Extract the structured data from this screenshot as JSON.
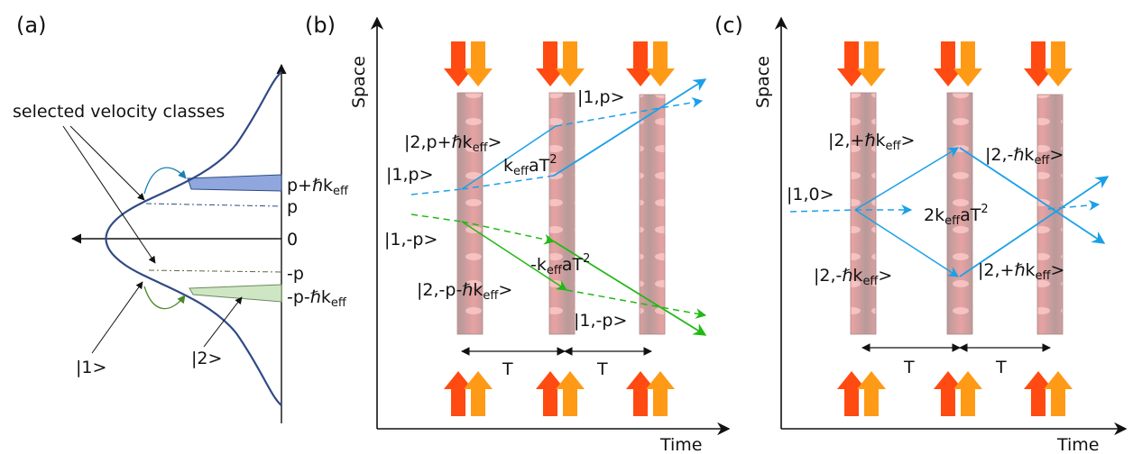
{
  "panels": {
    "a": {
      "label": "(a)",
      "annotation": "selected velocity classes",
      "levels": {
        "p_plus": "p+ℏk",
        "p_plus_sub": "eff",
        "p": "p",
        "zero": "0",
        "minus_p": "-p",
        "minus_p_minus": "-p-ℏk",
        "minus_p_minus_sub": "eff"
      },
      "states": {
        "one": "|1>",
        "two": "|2>"
      },
      "colors": {
        "curve": "#2f4a86",
        "upper_fill": "#8fa7dc",
        "lower_fill": "#cfe6c4"
      }
    },
    "b": {
      "label": "(b)",
      "axis_y": "Space",
      "axis_x": "Time",
      "period_label": "T",
      "states": {
        "top_right": "|1,p>",
        "top_left_upper": "|2,p+ℏk",
        "top_left_upper_sub": "eff",
        "top_left_upper_end": ">",
        "top_left_lower": "|1,p>",
        "phase_top_k": "k",
        "phase_top_sub": "eff",
        "phase_top_rest": "aT",
        "phase_top_pow": "2",
        "bottom_left": "|1,-p>",
        "phase_bot_k": "-k",
        "phase_bot_sub": "eff",
        "phase_bot_rest": "aT",
        "phase_bot_pow": "2",
        "bottom_left_lower": "|2,-p-ℏk",
        "bottom_left_lower_sub": "eff",
        "bottom_left_lower_end": ">",
        "bottom_right": "|1,-p>"
      },
      "colors": {
        "blue": "#1aa0e8",
        "green": "#22b814",
        "pulse_down_a": "#ff4a12",
        "pulse_down_b": "#ff9a16"
      }
    },
    "c": {
      "label": "(c)",
      "axis_y": "Space",
      "axis_x": "Time",
      "period_label": "T",
      "states": {
        "upper_left": "|2,+ℏk",
        "upper_left_sub": "eff",
        "upper_left_end": ">",
        "upper_right": "|2,-ℏk",
        "upper_right_sub": "eff",
        "upper_right_end": ">",
        "initial": "|1,0>",
        "phase_k": "2k",
        "phase_sub": "eff",
        "phase_rest": "aT",
        "phase_pow": "2",
        "lower_left": "|2,-ℏk",
        "lower_left_sub": "eff",
        "lower_left_end": ">",
        "lower_right": "|2,+ℏk",
        "lower_right_sub": "eff",
        "lower_right_end": ">"
      }
    }
  }
}
